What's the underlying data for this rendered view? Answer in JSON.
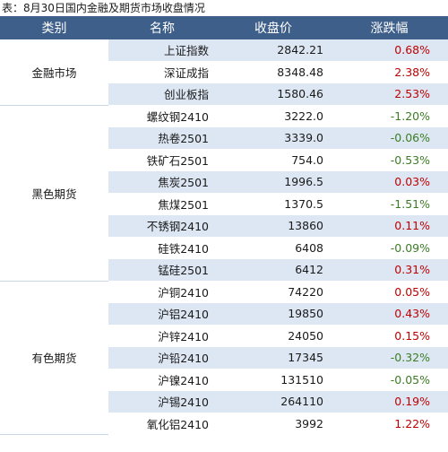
{
  "caption": "表：8月30日国内金融及期货市场收盘情况",
  "headers": [
    "类别",
    "名称",
    "收盘价",
    "涨跌幅"
  ],
  "colors": {
    "header_bg": "#3e5f8a",
    "stripe": "#dde7f3",
    "up": "#c00000",
    "down": "#3b7d23"
  },
  "groups": [
    {
      "category": "金融市场",
      "rows": [
        {
          "name": "上证指数",
          "price": "2842.21",
          "change": "0.68%",
          "dir": "up"
        },
        {
          "name": "深证成指",
          "price": "8348.48",
          "change": "2.38%",
          "dir": "up"
        },
        {
          "name": "创业板指",
          "price": "1580.46",
          "change": "2.53%",
          "dir": "up"
        }
      ]
    },
    {
      "category": "黑色期货",
      "rows": [
        {
          "name": "螺纹钢2410",
          "price": "3222.0",
          "change": "-1.20%",
          "dir": "down"
        },
        {
          "name": "热卷2501",
          "price": "3339.0",
          "change": "-0.06%",
          "dir": "down"
        },
        {
          "name": "铁矿石2501",
          "price": "754.0",
          "change": "-0.53%",
          "dir": "down"
        },
        {
          "name": "焦炭2501",
          "price": "1996.5",
          "change": "0.03%",
          "dir": "up"
        },
        {
          "name": "焦煤2501",
          "price": "1370.5",
          "change": "-1.51%",
          "dir": "down"
        },
        {
          "name": "不锈钢2410",
          "price": "13860",
          "change": "0.11%",
          "dir": "up"
        },
        {
          "name": "硅铁2410",
          "price": "6408",
          "change": "-0.09%",
          "dir": "down"
        },
        {
          "name": "锰硅2501",
          "price": "6412",
          "change": "0.31%",
          "dir": "up"
        }
      ]
    },
    {
      "category": "有色期货",
      "rows": [
        {
          "name": "沪铜2410",
          "price": "74220",
          "change": "0.05%",
          "dir": "up"
        },
        {
          "name": "沪铝2410",
          "price": "19850",
          "change": "0.43%",
          "dir": "up"
        },
        {
          "name": "沪锌2410",
          "price": "24050",
          "change": "0.15%",
          "dir": "up"
        },
        {
          "name": "沪铅2410",
          "price": "17345",
          "change": "-0.32%",
          "dir": "down"
        },
        {
          "name": "沪镍2410",
          "price": "131510",
          "change": "-0.05%",
          "dir": "down"
        },
        {
          "name": "沪锡2410",
          "price": "264110",
          "change": "0.19%",
          "dir": "up"
        },
        {
          "name": "氧化铝2410",
          "price": "3992",
          "change": "1.22%",
          "dir": "up"
        }
      ]
    }
  ]
}
